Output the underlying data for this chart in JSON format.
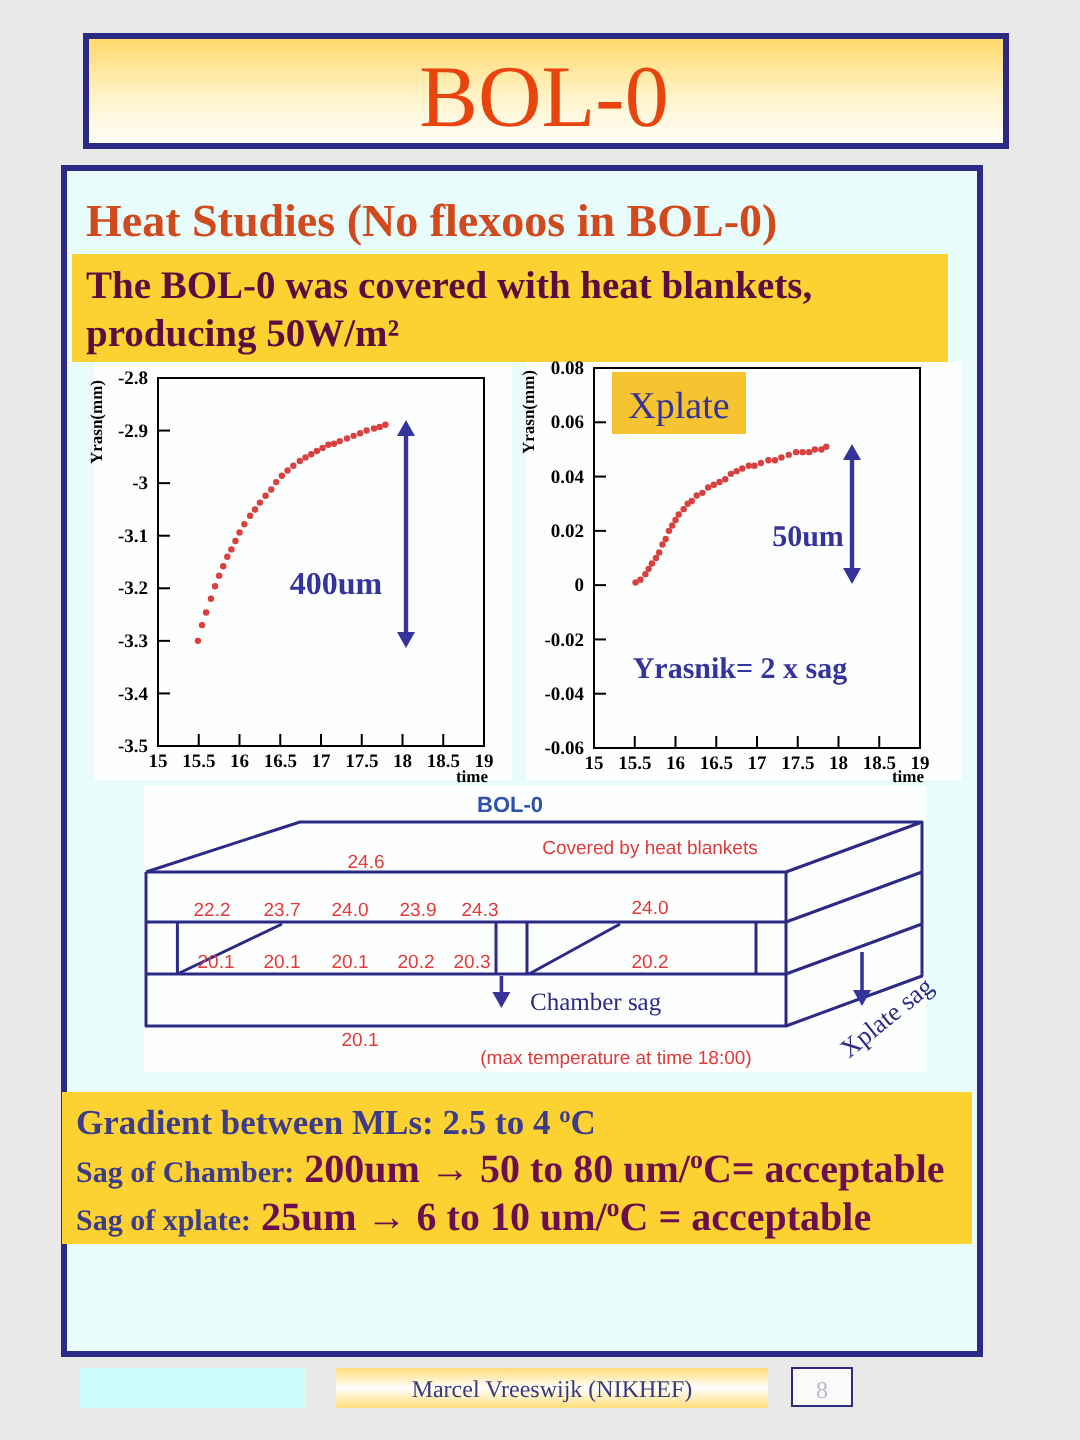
{
  "chart_data": [
    {
      "type": "other",
      "title": "BOL-0",
      "subtitle": "Heat Studies (No flexoos in BOL-0)",
      "annotations": [
        "The BOL-0 was covered with heat blankets, producing 50W/m²"
      ]
    },
    {
      "type": "scatter",
      "xlabel": "time",
      "ylabel": "Yrasn(mm)",
      "color": "#d94040",
      "marker": "circle",
      "x": [
        15.49,
        15.54,
        15.59,
        15.65,
        15.7,
        15.75,
        15.8,
        15.85,
        15.9,
        15.95,
        16.0,
        16.06,
        16.13,
        16.19,
        16.25,
        16.32,
        16.39,
        16.45,
        16.52,
        16.59,
        16.66,
        16.74,
        16.81,
        16.88,
        16.95,
        17.02,
        17.09,
        17.16,
        17.23,
        17.32,
        17.4,
        17.48,
        17.56,
        17.65,
        17.72,
        17.79
      ],
      "values": [
        -3.3,
        -3.27,
        -3.246,
        -3.22,
        -3.196,
        -3.176,
        -3.158,
        -3.14,
        -3.126,
        -3.11,
        -3.094,
        -3.078,
        -3.062,
        -3.05,
        -3.037,
        -3.024,
        -3.012,
        -2.998,
        -2.986,
        -2.976,
        -2.967,
        -2.958,
        -2.951,
        -2.945,
        -2.939,
        -2.933,
        -2.927,
        -2.925,
        -2.92,
        -2.915,
        -2.91,
        -2.905,
        -2.9,
        -2.896,
        -2.893,
        -2.889
      ],
      "xlim": [
        15,
        19
      ],
      "xticks": [
        15,
        15.5,
        16,
        16.5,
        17,
        17.5,
        18,
        18.5,
        19
      ],
      "ylim": [
        -3.5,
        -2.8
      ],
      "yticks": [
        -3.5,
        -3.4,
        -3.3,
        -3.2,
        -3.1,
        -3,
        -2.9,
        -2.8
      ],
      "annotations": [
        "400um"
      ]
    },
    {
      "type": "scatter",
      "xlabel": "time",
      "ylabel": "Yrasn(mm)",
      "color": "#d94040",
      "marker": "circle",
      "x": [
        15.51,
        15.57,
        15.63,
        15.67,
        15.71,
        15.76,
        15.8,
        15.84,
        15.88,
        15.92,
        15.96,
        16.0,
        16.04,
        16.1,
        16.15,
        16.2,
        16.26,
        16.33,
        16.4,
        16.47,
        16.54,
        16.61,
        16.68,
        16.75,
        16.82,
        16.9,
        16.97,
        17.05,
        17.14,
        17.22,
        17.3,
        17.39,
        17.48,
        17.56,
        17.64,
        17.71,
        17.79,
        17.85
      ],
      "values": [
        0.001,
        0.002,
        0.004,
        0.006,
        0.008,
        0.01,
        0.012,
        0.015,
        0.017,
        0.02,
        0.022,
        0.024,
        0.026,
        0.028,
        0.03,
        0.031,
        0.033,
        0.034,
        0.036,
        0.037,
        0.038,
        0.039,
        0.041,
        0.042,
        0.043,
        0.044,
        0.044,
        0.045,
        0.046,
        0.046,
        0.047,
        0.048,
        0.049,
        0.049,
        0.049,
        0.05,
        0.05,
        0.051
      ],
      "xlim": [
        15,
        19
      ],
      "xticks": [
        15,
        15.5,
        16,
        16.5,
        17,
        17.5,
        18,
        18.5,
        19
      ],
      "ylim": [
        -0.06,
        0.08
      ],
      "yticks": [
        -0.06,
        -0.04,
        -0.02,
        0,
        0.02,
        0.04,
        0.06,
        0.08
      ],
      "annotations": [
        "Xplate",
        "50um",
        "Yrasnik= 2 x sag"
      ]
    },
    {
      "type": "other",
      "title": "BOL-0",
      "annotations": [
        "Covered by heat blankets",
        "24.6",
        "22.2",
        "23.7",
        "24.0",
        "23.9",
        "24.3",
        "24.0",
        "20.1",
        "20.1",
        "20.1",
        "20.2",
        "20.3",
        "20.2",
        "Chamber sag",
        "20.1",
        "(max temperature at time 18:00)",
        "Xplate sag"
      ]
    },
    {
      "type": "other",
      "annotations": [
        "Gradient between MLs: 2.5 to 4 $^{o}$C",
        "Sag of Chamber:",
        "200um → 50 to 80 um/$^{o}$C= acceptable",
        "Sag of xplate:",
        "25um → 6 to 10 um/$^{o}$C = acceptable",
        "Marcel Vreeswijk (NIKHEF)",
        "8"
      ]
    }
  ]
}
